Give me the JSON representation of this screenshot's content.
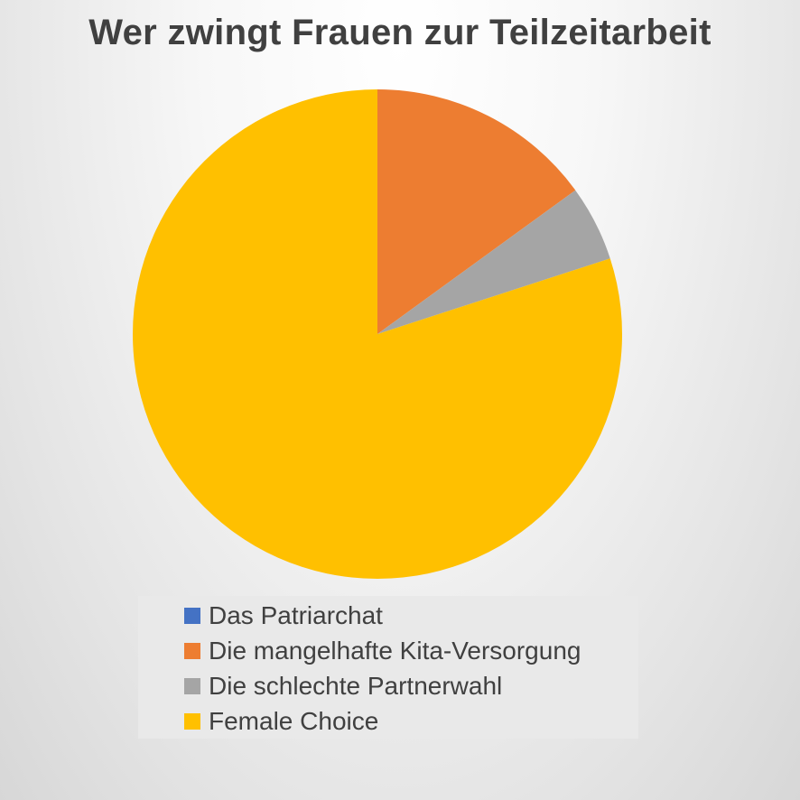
{
  "chart_data": {
    "type": "pie",
    "title": "Wer zwingt Frauen zur Teilzeitarbeit",
    "legend_position": "bottom",
    "start_angle": "12 o'clock, clockwise",
    "slices": [
      {
        "label": "Das Patriarchat",
        "value": 0,
        "color": "#4472C4"
      },
      {
        "label": "Die mangelhafte Kita-Versorgung",
        "value": 15,
        "color": "#ED7D31"
      },
      {
        "label": "Die schlechte Partnerwahl",
        "value": 5,
        "color": "#A5A5A5"
      },
      {
        "label": "Female Choice",
        "value": 80,
        "color": "#FFC000"
      }
    ]
  }
}
